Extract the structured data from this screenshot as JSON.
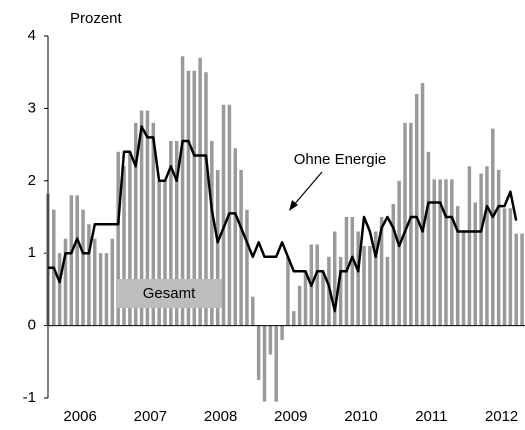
{
  "chart_data": {
    "type": "bar",
    "y_label": "Prozent",
    "categories": [
      null,
      null,
      null,
      null,
      null,
      null,
      "2006",
      null,
      null,
      null,
      null,
      null,
      null,
      null,
      null,
      null,
      null,
      null,
      "2007",
      null,
      null,
      null,
      null,
      null,
      null,
      null,
      null,
      null,
      null,
      null,
      "2008",
      null,
      null,
      null,
      null,
      null,
      null,
      null,
      null,
      null,
      null,
      null,
      "2009",
      null,
      null,
      null,
      null,
      null,
      null,
      null,
      null,
      null,
      null,
      null,
      "2010",
      null,
      null,
      null,
      null,
      null,
      null,
      null,
      null,
      null,
      null,
      null,
      "2011",
      null,
      null,
      null,
      null,
      null,
      null,
      null,
      null,
      null,
      null,
      null,
      "2012",
      null,
      null,
      null
    ],
    "series": [
      {
        "name": "Gesamt",
        "type": "bar",
        "color": "#9a9a9a",
        "values": [
          1.82,
          1.6,
          1.0,
          1.2,
          1.8,
          1.8,
          1.6,
          1.4,
          1.2,
          1.0,
          1.0,
          1.2,
          2.4,
          2.2,
          2.4,
          2.8,
          2.97,
          2.97,
          2.8,
          2.0,
          2.0,
          2.55,
          2.55,
          3.72,
          3.52,
          3.52,
          3.7,
          3.5,
          2.55,
          2.15,
          3.05,
          3.05,
          2.45,
          2.15,
          1.6,
          0.4,
          -0.75,
          -1.05,
          -0.4,
          -1.05,
          -0.2,
          0.95,
          0.2,
          0.55,
          0.75,
          1.12,
          1.12,
          0.75,
          0.95,
          1.3,
          0.95,
          1.5,
          1.5,
          1.3,
          1.1,
          1.1,
          1.3,
          1.5,
          0.95,
          1.68,
          2.0,
          2.8,
          2.8,
          3.2,
          3.35,
          2.4,
          2.02,
          2.02,
          2.02,
          2.02,
          1.65,
          1.3,
          2.2,
          1.7,
          2.1,
          2.2,
          2.72,
          2.15,
          1.62,
          1.62,
          1.27,
          1.27
        ]
      },
      {
        "name": "Ohne Energie",
        "type": "line",
        "color": "#000000",
        "values": [
          0.8,
          0.8,
          0.6,
          1.0,
          1.0,
          1.2,
          1.0,
          1.0,
          1.4,
          1.4,
          1.4,
          1.4,
          1.4,
          2.4,
          2.4,
          2.2,
          2.75,
          2.6,
          2.6,
          2.0,
          2.0,
          2.2,
          2.0,
          2.55,
          2.55,
          2.35,
          2.35,
          2.35,
          1.6,
          1.15,
          1.35,
          1.55,
          1.55,
          1.35,
          1.15,
          0.95,
          1.15,
          0.95,
          0.95,
          0.95,
          1.15,
          0.95,
          0.75,
          0.75,
          0.75,
          0.55,
          0.75,
          0.75,
          0.55,
          0.2,
          0.75,
          0.75,
          0.95,
          0.75,
          1.5,
          1.3,
          0.95,
          1.35,
          1.5,
          1.35,
          1.1,
          1.3,
          1.5,
          1.5,
          1.3,
          1.7,
          1.7,
          1.7,
          1.5,
          1.5,
          1.3,
          1.3,
          1.3,
          1.3,
          1.3,
          1.65,
          1.5,
          1.65,
          1.65,
          1.85,
          1.45,
          null
        ]
      }
    ],
    "ylim": [
      -1,
      4
    ],
    "yticks": [
      -1,
      0,
      1,
      2,
      3,
      4
    ]
  }
}
